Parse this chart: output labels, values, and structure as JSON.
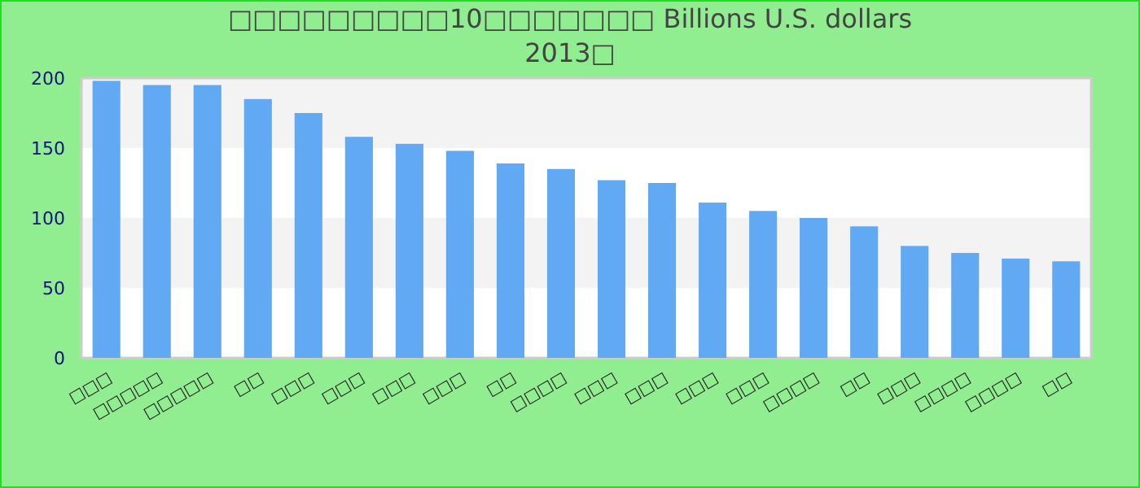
{
  "chart_data": {
    "type": "bar",
    "title": "□□□□□□□□□10□□□□□□□ Billions U.S. dollars\n2013□",
    "categories": [
      "□□□",
      "□□□□□",
      "□□□□□",
      "□□",
      "□□□",
      "□□□",
      "□□□",
      "□□□",
      "□□",
      "□□□□",
      "□□□",
      "□□□",
      "□□□",
      "□□□",
      "□□□□",
      "□□",
      "□□□",
      "□□□□",
      "□□□□",
      "□□"
    ],
    "values": [
      198,
      195,
      195,
      185,
      175,
      158,
      153,
      148,
      139,
      135,
      127,
      125,
      111,
      105,
      100,
      94,
      80,
      75,
      71,
      69
    ],
    "color": "#62a9f4",
    "ylim": [
      0,
      200
    ],
    "yticks": [
      0,
      50,
      100,
      150,
      200
    ],
    "bands": [
      {
        "axis": "y",
        "from": 50,
        "to": 100,
        "color": "#f3f3f3"
      },
      {
        "axis": "y",
        "from": 150,
        "to": 200,
        "color": "#f3f3f3"
      }
    ]
  }
}
